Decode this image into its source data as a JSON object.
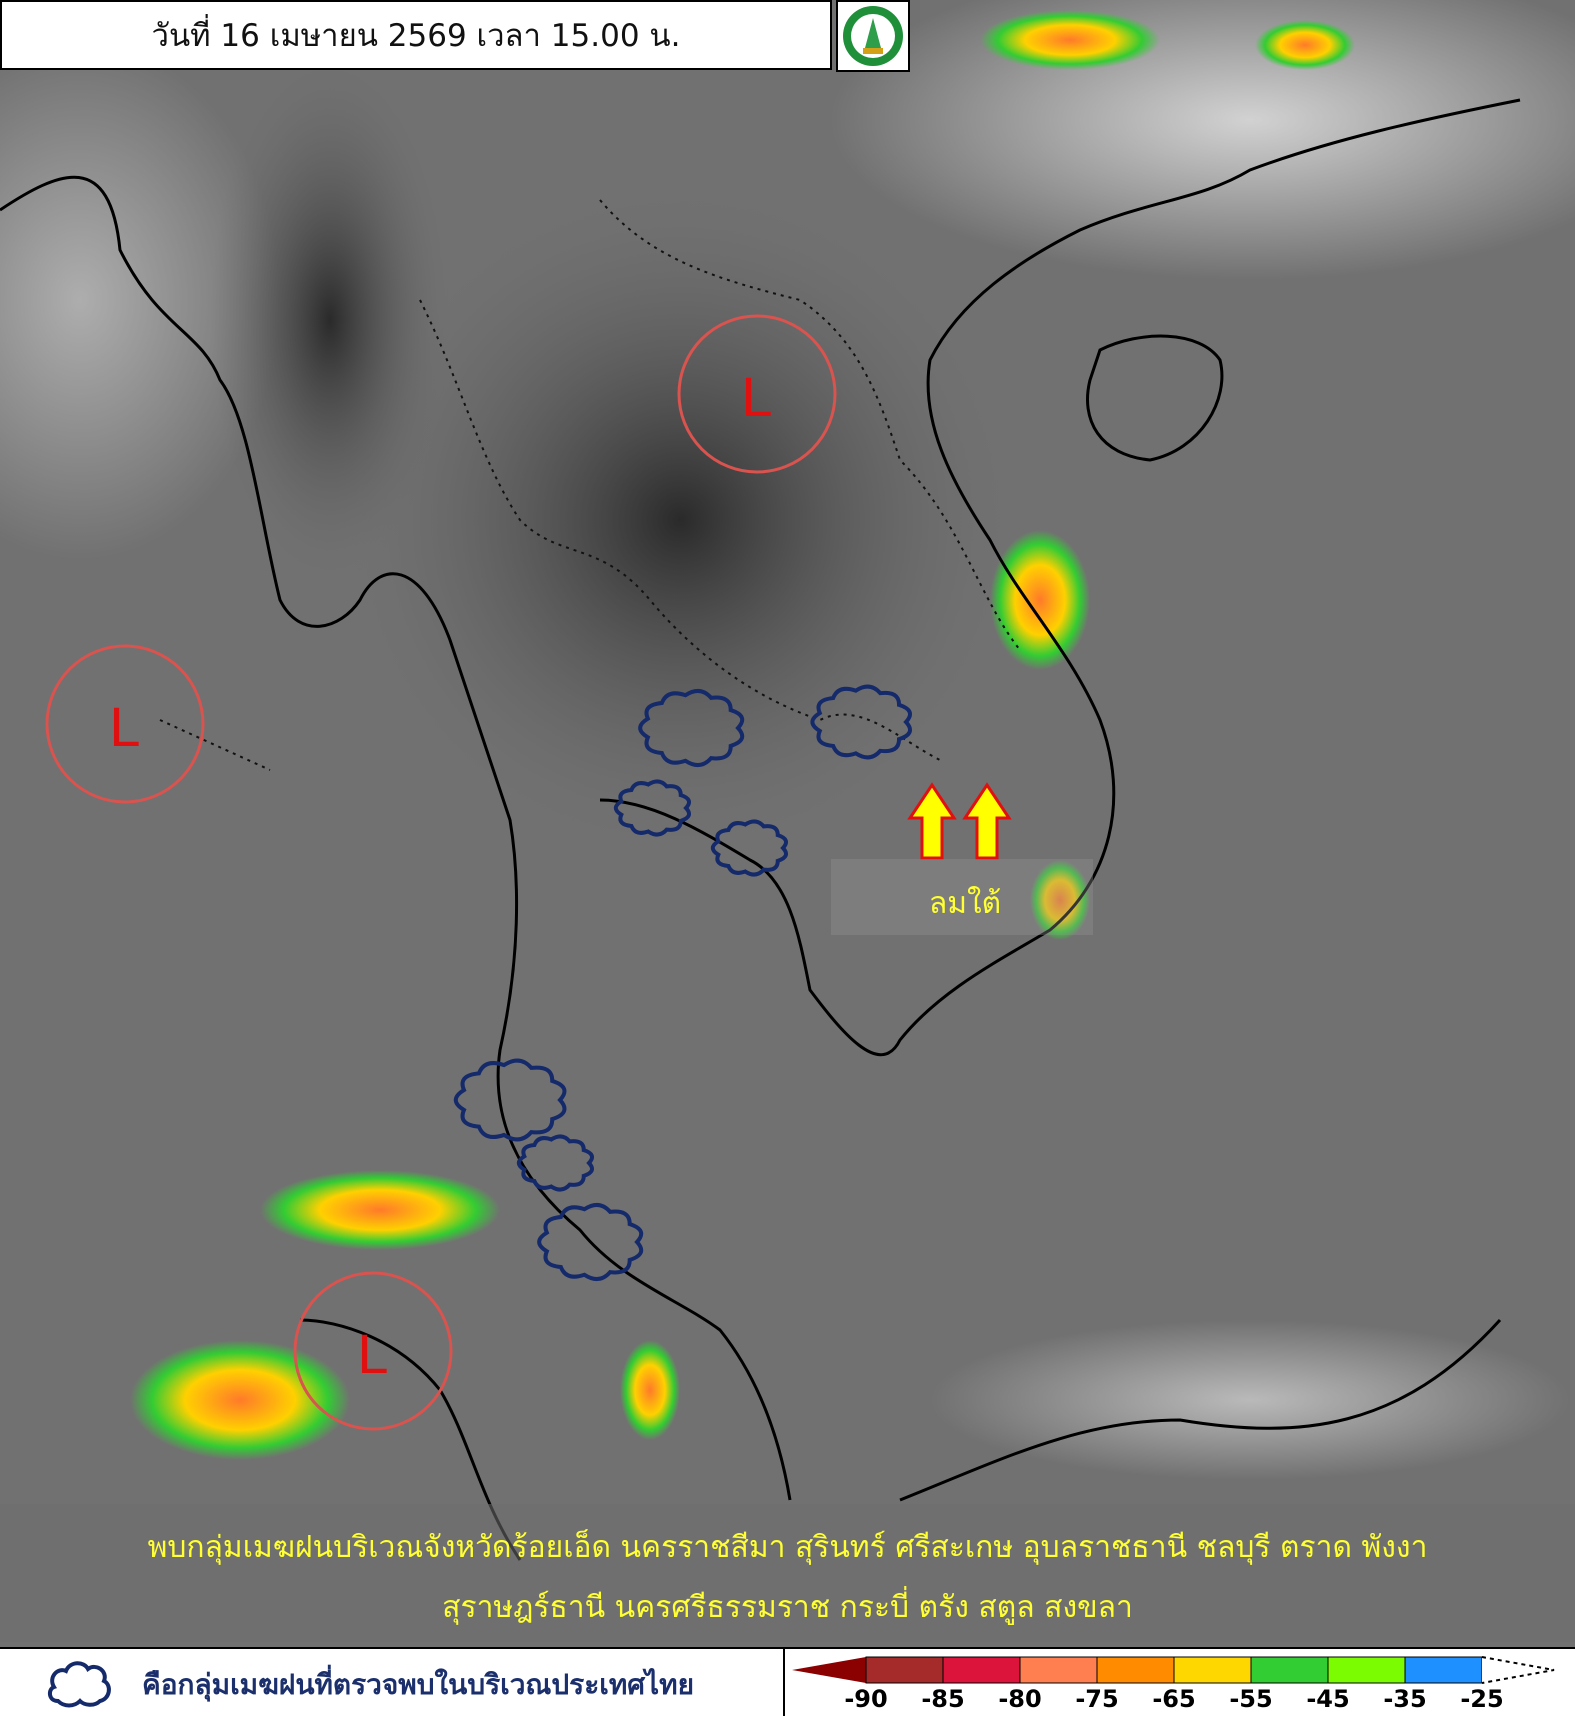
{
  "header": {
    "title": "วันที่ 16 เมษายน 2569 เวลา 15.00 น.",
    "logo": "กรมอุตุนิยมวิทยา METEOROLOGICAL DEPARTMENT"
  },
  "map": {
    "low_pressure_label": "L",
    "wind_label": "ลมใต้",
    "colors": {
      "low_circle": "#d9534f",
      "low_text": "#e01010",
      "arrow": "#ffff00",
      "cloud_outline": "#142a6b"
    }
  },
  "summary": {
    "line1": "พบกลุ่มเมฆฝนบริเวณจังหวัดร้อยเอ็ด นครราชสีมา สุรินทร์ ศรีสะเกษ อุบลราชธานี ชลบุรี ตราด พังงา",
    "line2": "สุราษฎร์ธานี นครศรีธรรมราช กระบี่ ตรัง สตูล สงขลา"
  },
  "legend": {
    "cloud_icon": "cloud-outline-icon",
    "cloud_text": "คือกลุ่มเมฆฝนที่ตรวจพบในบริเวณประเทศไทย",
    "scale_colors": [
      "#8b0000",
      "#a52a2a",
      "#dc143c",
      "#ff7f50",
      "#ff8c00",
      "#ffd700",
      "#32cd32",
      "#7cfc00",
      "#1e90ff"
    ],
    "ticks": [
      "-90",
      "-85",
      "-80",
      "-75",
      "-65",
      "-55",
      "-45",
      "-35",
      "-25"
    ]
  }
}
